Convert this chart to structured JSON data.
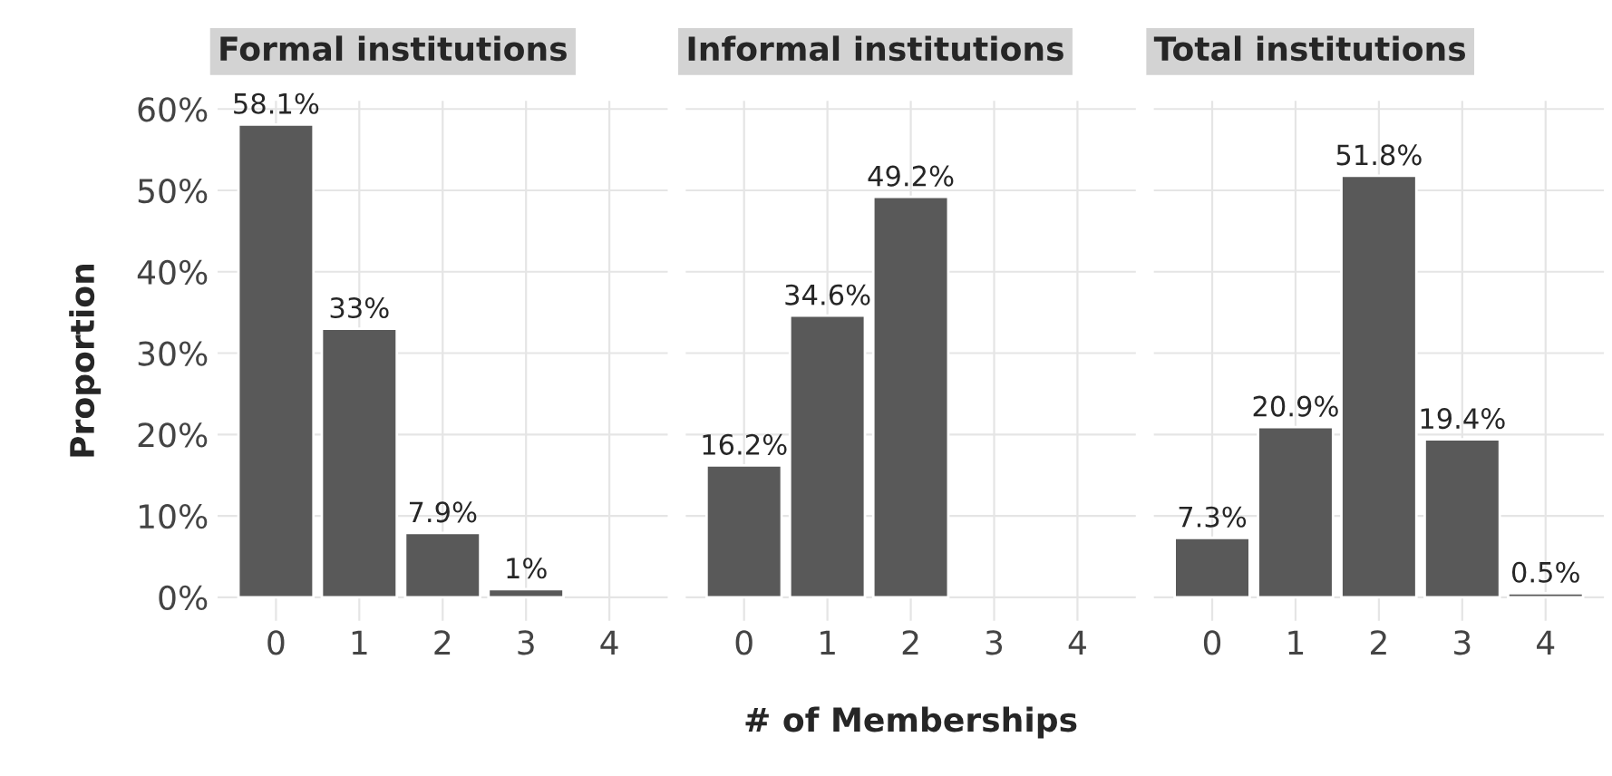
{
  "chart_data": [
    {
      "type": "bar",
      "title": "Formal institutions",
      "ylabel": "Proportion",
      "x": [
        0,
        1,
        2,
        3
      ],
      "values": [
        58.1,
        33,
        7.9,
        1
      ],
      "value_labels": [
        "58.1%",
        "33%",
        "7.9%",
        "1%"
      ],
      "color": "#595959",
      "xlim": [
        -0.7,
        4.7
      ],
      "xticks": [
        0,
        1,
        2,
        3,
        4
      ],
      "ylim": [
        -2.9,
        61
      ],
      "yticks": [
        {
          "value": 0,
          "label": "0%"
        },
        {
          "value": 10,
          "label": "10%"
        },
        {
          "value": 20,
          "label": "20%"
        },
        {
          "value": 30,
          "label": "30%"
        },
        {
          "value": 40,
          "label": "40%"
        },
        {
          "value": 50,
          "label": "50%"
        },
        {
          "value": 60,
          "label": "60%"
        }
      ],
      "grid": true
    },
    {
      "type": "bar",
      "title": "Informal institutions",
      "xlabel": "# of Memberships",
      "x": [
        0,
        1,
        2
      ],
      "values": [
        16.2,
        34.6,
        49.2
      ],
      "value_labels": [
        "16.2%",
        "34.6%",
        "49.2%"
      ],
      "color": "#595959",
      "xlim": [
        -0.7,
        4.7
      ],
      "xticks": [
        0,
        1,
        2,
        3,
        4
      ],
      "ylim": [
        -2.9,
        61
      ],
      "yticks": [
        0,
        10,
        20,
        30,
        40,
        50,
        60
      ],
      "tick_labels": "x",
      "grid": true
    },
    {
      "type": "bar",
      "title": "Total institutions",
      "x": [
        0,
        1,
        2,
        3,
        4
      ],
      "values": [
        7.3,
        20.9,
        51.8,
        19.4,
        0.5
      ],
      "value_labels": [
        "7.3%",
        "20.9%",
        "51.8%",
        "19.4%",
        "0.5%"
      ],
      "color": "#595959",
      "xlim": [
        -0.7,
        4.7
      ],
      "xticks": [
        0,
        1,
        2,
        3,
        4
      ],
      "ylim": [
        -2.9,
        61
      ],
      "yticks": [
        0,
        10,
        20,
        30,
        40,
        50,
        60
      ],
      "tick_labels": "x",
      "grid": true
    }
  ]
}
